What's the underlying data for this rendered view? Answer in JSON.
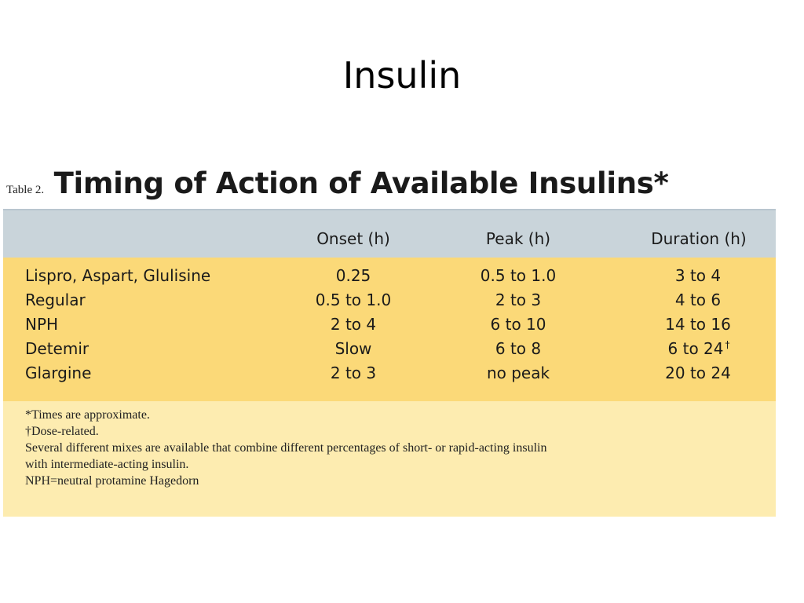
{
  "slide": {
    "title": "Insulin"
  },
  "table": {
    "prefix": "Table 2.",
    "title": "Timing of Action of Available Insulins*",
    "columns": [
      "",
      "Onset (h)",
      "Peak (h)",
      "Duration (h)"
    ],
    "rows": [
      {
        "name": "Lispro, Aspart, Glulisine",
        "onset": "0.25",
        "peak": "0.5 to 1.0",
        "duration": "3 to 4",
        "duration_mark": ""
      },
      {
        "name": "Regular",
        "onset": "0.5 to 1.0",
        "peak": "2 to 3",
        "duration": "4 to 6",
        "duration_mark": ""
      },
      {
        "name": "NPH",
        "onset": "2 to 4",
        "peak": "6 to 10",
        "duration": "14 to 16",
        "duration_mark": ""
      },
      {
        "name": "Detemir",
        "onset": "Slow",
        "peak": "6 to 8",
        "duration": "6 to 24",
        "duration_mark": "†"
      },
      {
        "name": "Glargine",
        "onset": "2 to 3",
        "peak": "no peak",
        "duration": "20 to 24",
        "duration_mark": ""
      }
    ],
    "footnotes": [
      "*Times are approximate.",
      "†Dose-related.",
      "Several different mixes are available that combine different percentages of short- or rapid-acting insulin",
      "with intermediate-acting insulin.",
      "NPH=neutral protamine Hagedorn"
    ],
    "colors": {
      "header_band": "#c9d4da",
      "data_band": "#fbd978",
      "footnote_band": "#fdecb0"
    }
  }
}
